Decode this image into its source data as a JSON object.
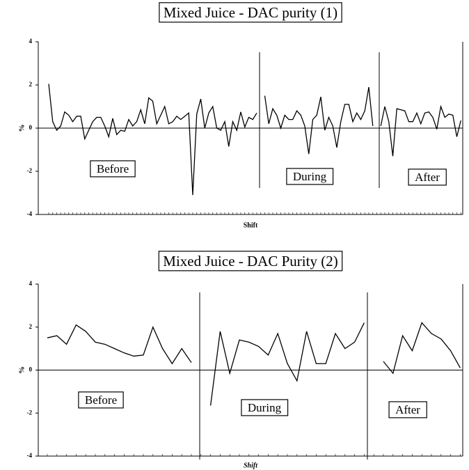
{
  "chart_data": [
    {
      "type": "line",
      "title": "Mixed Juice - DAC purity (1)",
      "xlabel": "Shift",
      "ylabel": "%",
      "categories": [
        null,
        null,
        null,
        null,
        null,
        null,
        null,
        null,
        null,
        null,
        null,
        null,
        null,
        null,
        null,
        null,
        null,
        null,
        null,
        null,
        null,
        null,
        null,
        null,
        null,
        null,
        null,
        null,
        null,
        null,
        null,
        null,
        null,
        null,
        null,
        null,
        null,
        null,
        null,
        null,
        null,
        null,
        null,
        null,
        null,
        null,
        null,
        null,
        null,
        null,
        null,
        null,
        null,
        null,
        null,
        null,
        null,
        null,
        null,
        null,
        null,
        null,
        null,
        null,
        null,
        null,
        null,
        null,
        null,
        null,
        null,
        null,
        null,
        null,
        null,
        null,
        null,
        null,
        null,
        null,
        null,
        null,
        null,
        null,
        null,
        null,
        null,
        null,
        null,
        null,
        null,
        null,
        null,
        null,
        null,
        null,
        null,
        null,
        null,
        null,
        null,
        null,
        null,
        null
      ],
      "values": [
        2.05,
        0.3,
        -0.1,
        0.1,
        0.75,
        0.6,
        0.3,
        0.55,
        0.55,
        -0.5,
        -0.1,
        0.3,
        0.5,
        0.5,
        0.1,
        -0.4,
        0.45,
        -0.3,
        -0.1,
        -0.15,
        0.4,
        0.1,
        0.3,
        0.85,
        0.2,
        1.4,
        1.25,
        0.2,
        0.6,
        1.0,
        0.2,
        0.3,
        0.55,
        0.4,
        0.55,
        0.7,
        -3.1,
        0.65,
        1.35,
        0.0,
        0.7,
        1.0,
        0.0,
        -0.1,
        0.3,
        -0.85,
        0.3,
        -0.1,
        0.75,
        0.05,
        0.5,
        0.4,
        0.7,
        null,
        1.5,
        0.2,
        0.9,
        0.6,
        0.0,
        0.6,
        0.4,
        0.4,
        0.8,
        0.6,
        0.1,
        -1.2,
        0.4,
        0.6,
        1.45,
        -0.1,
        0.5,
        0.1,
        -0.9,
        0.3,
        1.1,
        1.1,
        0.3,
        0.7,
        0.4,
        0.8,
        1.9,
        0.1,
        null,
        0.1,
        1.0,
        0.3,
        -1.3,
        0.9,
        0.85,
        0.8,
        0.3,
        0.3,
        0.7,
        0.2,
        0.7,
        0.75,
        0.5,
        -0.05,
        1.0,
        0.5,
        0.65,
        0.6,
        -0.4,
        0.35
      ],
      "color": "#000000",
      "ylim": [
        -4,
        4
      ],
      "yticks": [
        -4,
        -2,
        0,
        2,
        4
      ],
      "annotations": [
        "Before",
        "During",
        "After"
      ]
    },
    {
      "type": "line",
      "title": "Mixed Juice - DAC Purity (2)",
      "xlabel": "Shift",
      "ylabel": "%",
      "categories": [
        null,
        null,
        null,
        null,
        null,
        null,
        null,
        null,
        null,
        null,
        null,
        null,
        null,
        null,
        null,
        null,
        null,
        null,
        null,
        null,
        null,
        null,
        null,
        null,
        null,
        null,
        null,
        null,
        null,
        null,
        null,
        null,
        null,
        null,
        null,
        null,
        null,
        null,
        null,
        null,
        null,
        null,
        null,
        null
      ],
      "values": [
        1.5,
        1.6,
        1.2,
        2.1,
        1.8,
        1.3,
        1.2,
        1.0,
        0.8,
        0.65,
        0.7,
        2.0,
        1.0,
        0.3,
        1.0,
        0.35,
        null,
        -1.65,
        1.8,
        -0.15,
        1.4,
        1.3,
        1.1,
        0.7,
        1.7,
        0.3,
        -0.5,
        1.8,
        0.3,
        0.3,
        1.7,
        1.0,
        1.3,
        2.2,
        null,
        0.4,
        -0.15,
        1.6,
        0.9,
        2.2,
        1.7,
        1.45,
        0.9,
        0.1
      ],
      "color": "#000000",
      "ylim": [
        -4,
        4
      ],
      "yticks": [
        -4,
        -2,
        0,
        2,
        4
      ],
      "annotations": [
        "Before",
        "During",
        "After"
      ]
    }
  ]
}
